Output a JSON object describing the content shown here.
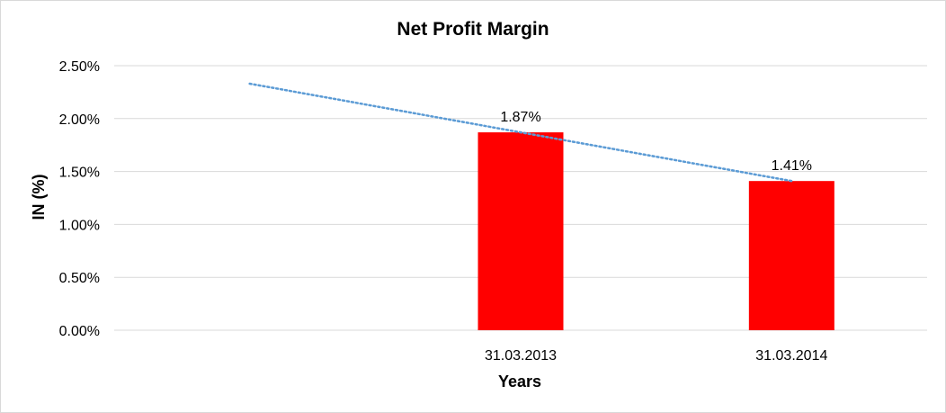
{
  "chart_data": {
    "type": "bar",
    "title": "Net Profit Margin",
    "xlabel": "Years",
    "ylabel": "IN (%)",
    "categories": [
      "",
      "31.03.2013",
      "31.03.2014"
    ],
    "values": [
      null,
      1.87,
      1.41
    ],
    "data_labels": [
      "",
      "1.87%",
      "1.41%"
    ],
    "ylim": [
      0,
      2.5
    ],
    "yticks": [
      0,
      0.5,
      1.0,
      1.5,
      2.0,
      2.5
    ],
    "ytick_labels": [
      "0.00%",
      "0.50%",
      "1.00%",
      "1.50%",
      "2.00%",
      "2.50%"
    ],
    "grid": true,
    "legend": "none",
    "trendline": {
      "type": "linear",
      "style": "dotted"
    },
    "colors": {
      "bar": "#ff0000",
      "trendline": "#5b9bd5",
      "grid": "#d9d9d9"
    }
  }
}
